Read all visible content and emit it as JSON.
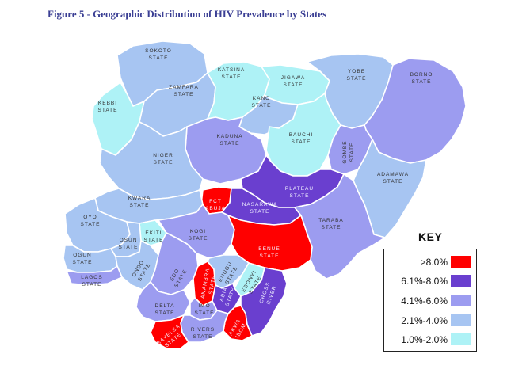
{
  "figure": {
    "title": "Figure 5 - Geographic Distribution of HIV Prevalence by States"
  },
  "colors": {
    "cat1": "#ff0000",
    "cat2": "#6a3fcf",
    "cat3": "#9c9cf0",
    "cat4": "#a7c5f2",
    "cat5": "#aef2f6"
  },
  "key": {
    "title": "KEY",
    "items": [
      {
        "label": ">8.0%",
        "color": "#ff0000"
      },
      {
        "label": "6.1%-8.0%",
        "color": "#6a3fcf"
      },
      {
        "label": "4.1%-6.0%",
        "color": "#9c9cf0"
      },
      {
        "label": "2.1%-4.0%",
        "color": "#a7c5f2"
      },
      {
        "label": "1.0%-2.0%",
        "color": "#aef2f6"
      }
    ]
  },
  "states": [
    {
      "name": "Sokoto",
      "label": [
        "SOKOTO",
        "STATE"
      ],
      "category": 4
    },
    {
      "name": "Kebbi",
      "label": [
        "KEBBI",
        "STATE"
      ],
      "category": 5
    },
    {
      "name": "Zamfara",
      "label": [
        "ZAMFARA",
        "STATE"
      ],
      "category": 4
    },
    {
      "name": "Katsina",
      "label": [
        "KATSINA",
        "STATE"
      ],
      "category": 5
    },
    {
      "name": "Jigawa",
      "label": [
        "JIGAWA",
        "STATE"
      ],
      "category": 5
    },
    {
      "name": "Kano",
      "label": [
        "KANO",
        "STATE"
      ],
      "category": 4
    },
    {
      "name": "Yobe",
      "label": [
        "YOBE",
        "STATE"
      ],
      "category": 4
    },
    {
      "name": "Borno",
      "label": [
        "BORNO",
        "STATE"
      ],
      "category": 3
    },
    {
      "name": "Kaduna",
      "label": [
        "KADUNA",
        "STATE"
      ],
      "category": 3
    },
    {
      "name": "Bauchi",
      "label": [
        "BAUCHI",
        "STATE"
      ],
      "category": 5
    },
    {
      "name": "Gombe",
      "label": [
        "GOMBE",
        "STATE"
      ],
      "category": 3
    },
    {
      "name": "Niger",
      "label": [
        "NIGER",
        "STATE"
      ],
      "category": 4
    },
    {
      "name": "Adamawa",
      "label": [
        "ADAMAWA",
        "STATE"
      ],
      "category": 4
    },
    {
      "name": "Plateau",
      "label": [
        "PLATEAU",
        "STATE"
      ],
      "category": 2
    },
    {
      "name": "FCT",
      "label": [
        "FCT",
        "ABUJA"
      ],
      "category": 1
    },
    {
      "name": "Nasarawa",
      "label": [
        "NASARAWA",
        "STATE"
      ],
      "category": 2
    },
    {
      "name": "Kwara",
      "label": [
        "KWARA",
        "STATE"
      ],
      "category": 4
    },
    {
      "name": "Oyo",
      "label": [
        "OYO",
        "STATE"
      ],
      "category": 4
    },
    {
      "name": "Taraba",
      "label": [
        "TARABA",
        "STATE"
      ],
      "category": 3
    },
    {
      "name": "Kogi",
      "label": [
        "KOGI",
        "STATE"
      ],
      "category": 3
    },
    {
      "name": "Ekiti",
      "label": [
        "EKITI",
        "STATE"
      ],
      "category": 5
    },
    {
      "name": "Osun",
      "label": [
        "OSUN",
        "STATE"
      ],
      "category": 4
    },
    {
      "name": "Benue",
      "label": [
        "BENUE",
        "STATE"
      ],
      "category": 1
    },
    {
      "name": "Ogun",
      "label": [
        "OGUN",
        "STATE"
      ],
      "category": 4
    },
    {
      "name": "Ondo",
      "label": [
        "ONDO",
        "STATE"
      ],
      "category": 4
    },
    {
      "name": "Edo",
      "label": [
        "EDO",
        "STATE"
      ],
      "category": 3
    },
    {
      "name": "Lagos",
      "label": [
        "LAGOS",
        "STATE"
      ],
      "category": 3
    },
    {
      "name": "Anambra",
      "label": [
        "ANAMBRA",
        "STATE"
      ],
      "category": 1
    },
    {
      "name": "Enugu",
      "label": [
        "ENUGU",
        "STATE"
      ],
      "category": 4
    },
    {
      "name": "Ebonyi",
      "label": [
        "EBONYI",
        "STATE"
      ],
      "category": 5
    },
    {
      "name": "Delta",
      "label": [
        "DELTA",
        "STATE"
      ],
      "category": 3
    },
    {
      "name": "Imo",
      "label": [
        "IMO",
        "STATE"
      ],
      "category": 3
    },
    {
      "name": "Abia",
      "label": [
        "ABIA",
        "STATE"
      ],
      "category": 2
    },
    {
      "name": "Cross River",
      "label": [
        "CROSS",
        "RIVER"
      ],
      "category": 2
    },
    {
      "name": "Akwa Ibom",
      "label": [
        "AKWA",
        "IBOM"
      ],
      "category": 1
    },
    {
      "name": "Rivers",
      "label": [
        "RIVERS",
        "STATE"
      ],
      "category": 3
    },
    {
      "name": "Bayelsa",
      "label": [
        "BAYELSA",
        "STATE"
      ],
      "category": 1
    }
  ]
}
